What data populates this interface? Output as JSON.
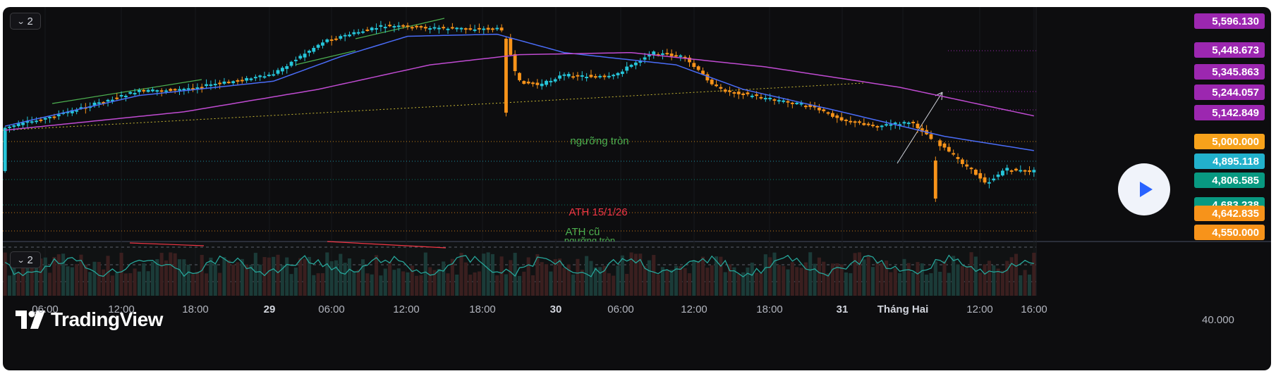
{
  "toolbar": {
    "main_collapse_label": "2",
    "osc_collapse_label": "2"
  },
  "brand": {
    "logo_text": "TradingView"
  },
  "price_tags": [
    {
      "label": "5,596.130",
      "color": "#9c27b0"
    },
    {
      "label": "5,448.673",
      "color": "#9c27b0"
    },
    {
      "label": "5,345.863",
      "color": "#9c27b0"
    },
    {
      "label": "5,244.057",
      "color": "#9c27b0"
    },
    {
      "label": "5,142.849",
      "color": "#9c27b0"
    },
    {
      "label": "5,000.000",
      "color": "#f7a21b"
    },
    {
      "label": "4,895.118",
      "color": "#22b1cc"
    },
    {
      "label": "4,806.585",
      "color": "#089981"
    },
    {
      "label": "4,683.238",
      "color": "#089981"
    },
    {
      "label": "4,642.835",
      "color": "#f7931a"
    },
    {
      "label": "4,550.000",
      "color": "#f7931a"
    }
  ],
  "annotations": {
    "round_level": "ngưỡng tròn",
    "ath_new": "ATH 15/1/26",
    "ath_old": "ATH cũ",
    "round_level_2": "ngưỡng tròn"
  },
  "oscillator": {
    "value_label": "40.000"
  },
  "chart_data": {
    "type": "candlestick",
    "x_axis_labels": [
      "06:00",
      "12:00",
      "18:00",
      "29",
      "06:00",
      "12:00",
      "18:00",
      "30",
      "06:00",
      "12:00",
      "18:00",
      "31",
      "Tháng Hai",
      "12:00",
      "16:00"
    ],
    "y_range": [
      4540,
      5620
    ],
    "horizontal_levels": [
      5000,
      4895.118,
      4806.585,
      4683.238,
      4642.835,
      4550
    ],
    "series": [
      {
        "name": "close",
        "kind": "price",
        "color_up": "#26c6da",
        "color_down": "#f7931a",
        "waypoints": [
          [
            0,
            5070
          ],
          [
            10,
            5120
          ],
          [
            30,
            5250
          ],
          [
            40,
            5260
          ],
          [
            60,
            5330
          ],
          [
            72,
            5500
          ],
          [
            85,
            5570
          ],
          [
            98,
            5560
          ],
          [
            112,
            5555
          ],
          [
            115,
            5300
          ],
          [
            120,
            5280
          ],
          [
            125,
            5330
          ],
          [
            136,
            5320
          ],
          [
            145,
            5440
          ],
          [
            152,
            5420
          ],
          [
            160,
            5260
          ],
          [
            170,
            5220
          ],
          [
            180,
            5180
          ],
          [
            188,
            5110
          ],
          [
            195,
            5080
          ],
          [
            203,
            5100
          ],
          [
            210,
            4980
          ],
          [
            215,
            4890
          ],
          [
            220,
            4800
          ],
          [
            224,
            4870
          ],
          [
            228,
            4860
          ],
          [
            230,
            4860
          ]
        ]
      },
      {
        "name": "",
        "kind": "ema-fast",
        "color": "#4a6cf7",
        "waypoints": [
          [
            0,
            5080
          ],
          [
            30,
            5230
          ],
          [
            60,
            5300
          ],
          [
            75,
            5420
          ],
          [
            90,
            5520
          ],
          [
            110,
            5530
          ],
          [
            125,
            5440
          ],
          [
            150,
            5380
          ],
          [
            165,
            5260
          ],
          [
            185,
            5160
          ],
          [
            210,
            5030
          ],
          [
            230,
            4960
          ]
        ]
      },
      {
        "name": "",
        "kind": "ema-slow",
        "color": "#c04bd2",
        "waypoints": [
          [
            0,
            5060
          ],
          [
            40,
            5150
          ],
          [
            70,
            5260
          ],
          [
            95,
            5380
          ],
          [
            115,
            5430
          ],
          [
            140,
            5440
          ],
          [
            170,
            5370
          ],
          [
            200,
            5270
          ],
          [
            230,
            5130
          ]
        ]
      }
    ],
    "trendlines": [
      {
        "kind": "support",
        "color": "#c8b834",
        "from": [
          0,
          5060
        ],
        "to": [
          225,
          5270
        ]
      }
    ],
    "oscillator": {
      "levels": [
        70,
        50,
        30
      ],
      "value": 40
    }
  }
}
